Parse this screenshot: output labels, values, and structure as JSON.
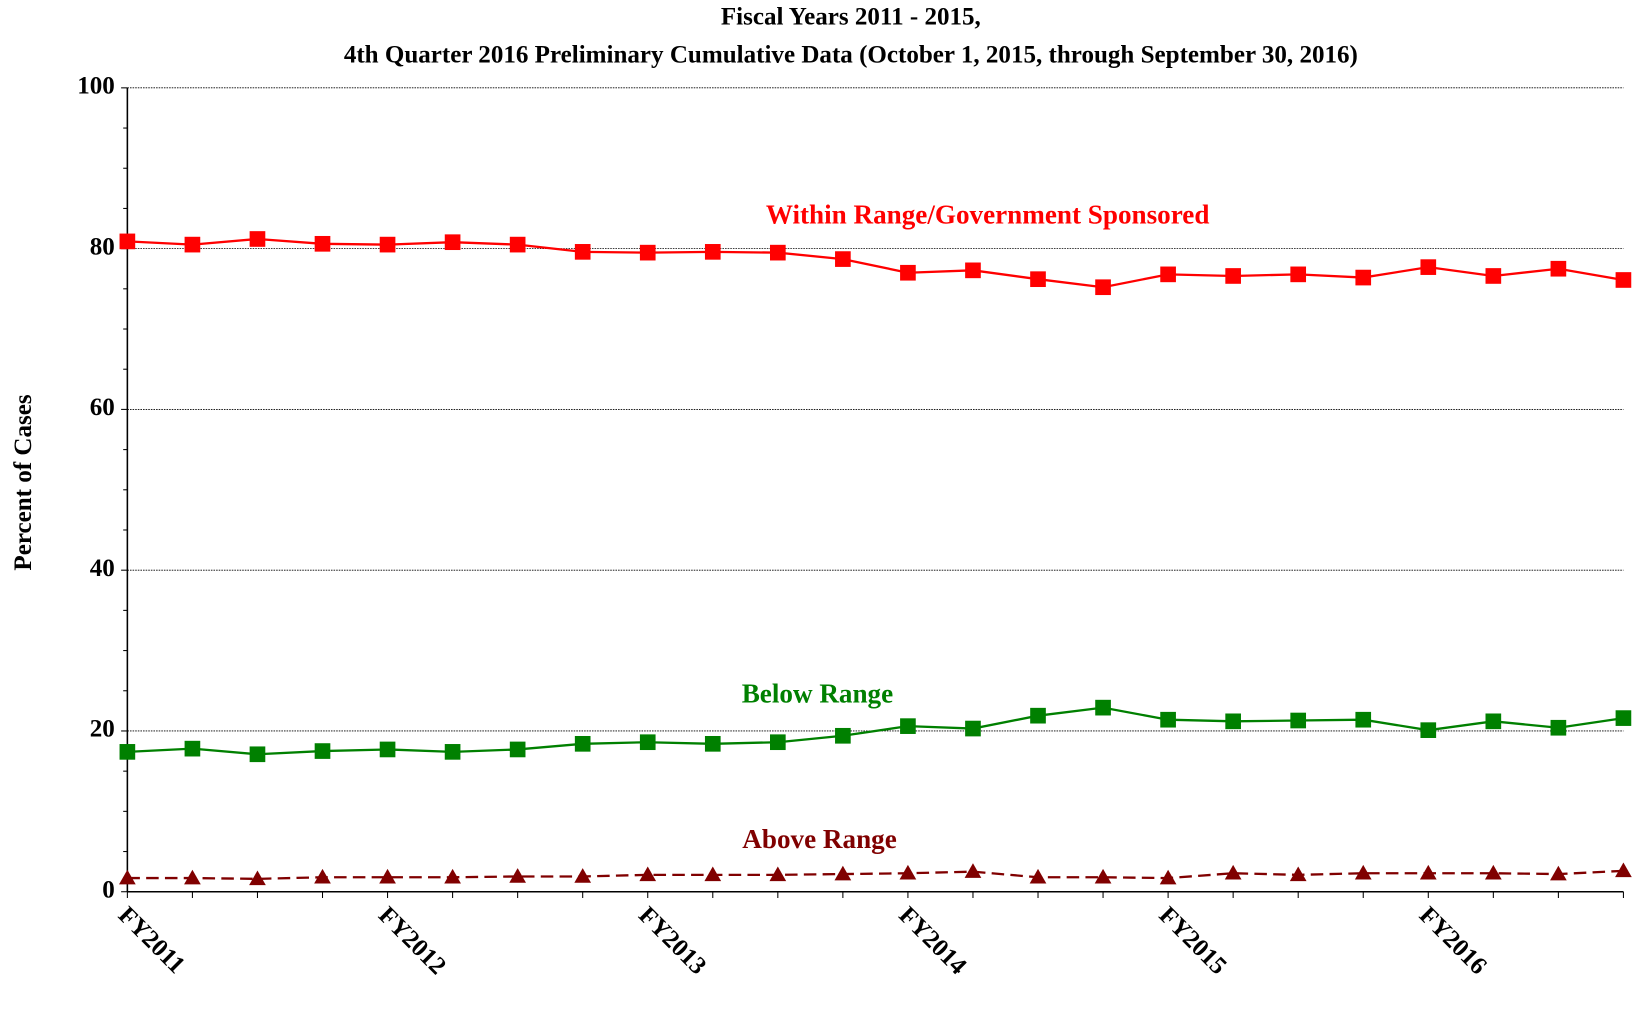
{
  "chart_data": {
    "type": "line",
    "title": "Fiscal Years 2011 - 2015,",
    "subtitle": "4th Quarter 2016 Preliminary Cumulative Data (October 1, 2015, through September 30, 2016)",
    "y_label": "Percent of Cases",
    "categories": [
      "FY2011",
      null,
      null,
      null,
      "FY2012",
      null,
      null,
      null,
      "FY2013",
      null,
      null,
      null,
      "FY2014",
      null,
      null,
      null,
      "FY2015",
      null,
      null,
      null,
      "FY2016",
      null,
      null,
      null
    ],
    "series": [
      {
        "name": "Within Range/Government Sponsored",
        "color": "#ff0000",
        "marker": "square",
        "dash": false,
        "values": [
          80.9,
          80.5,
          81.2,
          80.6,
          80.5,
          80.8,
          80.5,
          79.6,
          79.5,
          79.6,
          79.5,
          78.7,
          77.0,
          77.3,
          76.2,
          75.2,
          76.8,
          76.6,
          76.8,
          76.4,
          77.7,
          76.6,
          77.5,
          76.1
        ]
      },
      {
        "name": "Below Range",
        "color": "#008000",
        "marker": "square",
        "dash": false,
        "values": [
          17.4,
          17.8,
          17.1,
          17.5,
          17.7,
          17.4,
          17.7,
          18.4,
          18.6,
          18.4,
          18.6,
          19.4,
          20.6,
          20.3,
          21.9,
          22.9,
          21.4,
          21.2,
          21.3,
          21.4,
          20.1,
          21.2,
          20.4,
          21.6
        ]
      },
      {
        "name": "Above Range",
        "color": "#800000",
        "marker": "triangle",
        "dash": true,
        "values": [
          1.7,
          1.7,
          1.6,
          1.8,
          1.8,
          1.8,
          1.9,
          1.9,
          2.1,
          2.1,
          2.1,
          2.2,
          2.3,
          2.5,
          1.8,
          1.8,
          1.7,
          2.3,
          2.1,
          2.3,
          2.3,
          2.3,
          2.2,
          2.6
        ]
      }
    ],
    "ylim": [
      0,
      100
    ],
    "yticks": [
      0,
      20,
      40,
      60,
      80,
      100
    ],
    "yminorticks": [
      5,
      10,
      15,
      25,
      30,
      35,
      45,
      50,
      55,
      65,
      70,
      75,
      85,
      90,
      95
    ],
    "grid": true
  }
}
